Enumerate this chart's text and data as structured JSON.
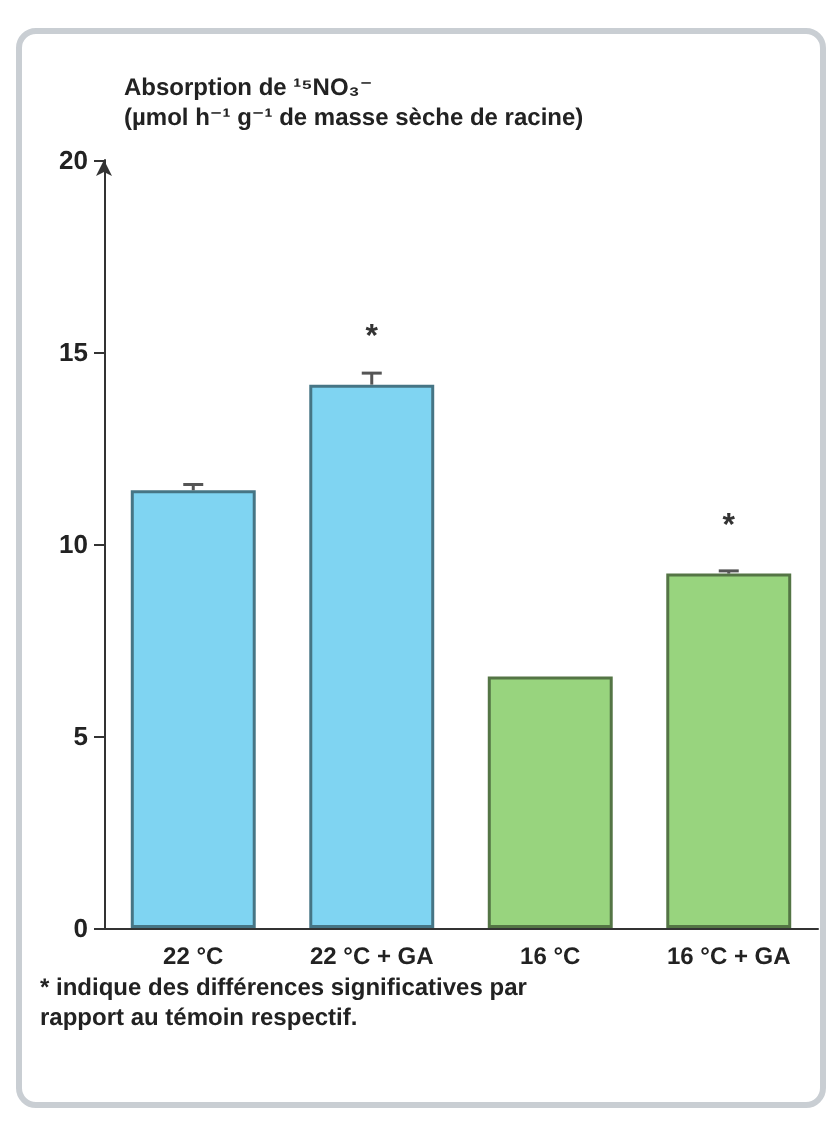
{
  "chart_data": {
    "type": "bar",
    "ylabel": "Absorption de ¹⁵NO₃⁻\n(µmol h⁻¹ g⁻¹ de masse sèche de racine)",
    "categories": [
      "22 °C",
      "22 °C + GA",
      "16 °C",
      "16 °C + GA"
    ],
    "values": [
      11.4,
      14.15,
      6.55,
      9.23
    ],
    "errors": [
      0.15,
      0.3,
      null,
      0.07
    ],
    "colors": [
      "#7fd4f2",
      "#7fd4f2",
      "#98d47e",
      "#98d47e"
    ],
    "ylim": [
      0,
      20
    ],
    "yticks": [
      0,
      5,
      10,
      15,
      20
    ],
    "grid": false,
    "annotations": [
      {
        "text": "*",
        "x": "22 °C + GA",
        "y": 14.15
      },
      {
        "text": "*",
        "x": "16 °C + GA",
        "y": 9.23
      },
      "* indique des différences significatives par\nrapport au témoin respectif."
    ]
  }
}
